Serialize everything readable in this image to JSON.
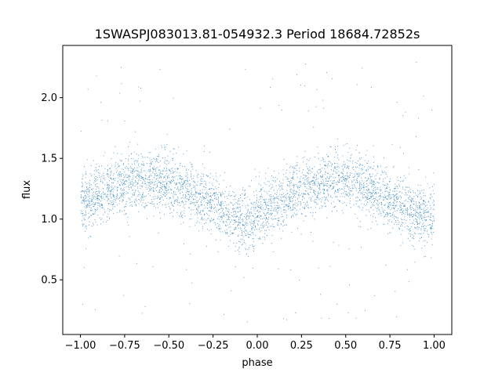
{
  "chart_data": {
    "type": "scatter",
    "title": "1SWASPJ083013.81-054932.3 Period 18684.72852s",
    "xlabel": "phase",
    "ylabel": "flux",
    "xlim": [
      -1.1,
      1.1
    ],
    "ylim": [
      0.05,
      2.43
    ],
    "xticks": [
      -1.0,
      -0.75,
      -0.5,
      -0.25,
      0.0,
      0.25,
      0.5,
      0.75,
      1.0
    ],
    "xtick_labels": [
      "−1.00",
      "−0.75",
      "−0.50",
      "−0.25",
      "0.00",
      "0.25",
      "0.50",
      "0.75",
      "1.00"
    ],
    "yticks": [
      0.5,
      1.0,
      1.5,
      2.0
    ],
    "ytick_labels": [
      "0.5",
      "1.0",
      "1.5",
      "2.0"
    ],
    "grid": false,
    "marker_color": "#1f77b4",
    "series": [
      {
        "model": "phase-folded light curve: flux vs phase, x in [-1, 1]",
        "mean_profile_phase": [
          -1.0,
          -0.9,
          -0.8,
          -0.7,
          -0.6,
          -0.5,
          -0.4,
          -0.3,
          -0.2,
          -0.1,
          -0.05,
          0.0,
          0.1,
          0.2,
          0.3,
          0.4,
          0.5,
          0.6,
          0.7,
          0.8,
          0.9,
          0.95,
          1.0
        ],
        "mean_profile_flux": [
          1.12,
          1.2,
          1.27,
          1.32,
          1.33,
          1.3,
          1.24,
          1.16,
          1.07,
          1.0,
          0.98,
          1.0,
          1.12,
          1.22,
          1.3,
          1.33,
          1.32,
          1.27,
          1.2,
          1.11,
          1.04,
          1.02,
          1.05
        ],
        "scatter_sigma": 0.12,
        "outlier_range": [
          0.15,
          2.3
        ]
      }
    ]
  }
}
